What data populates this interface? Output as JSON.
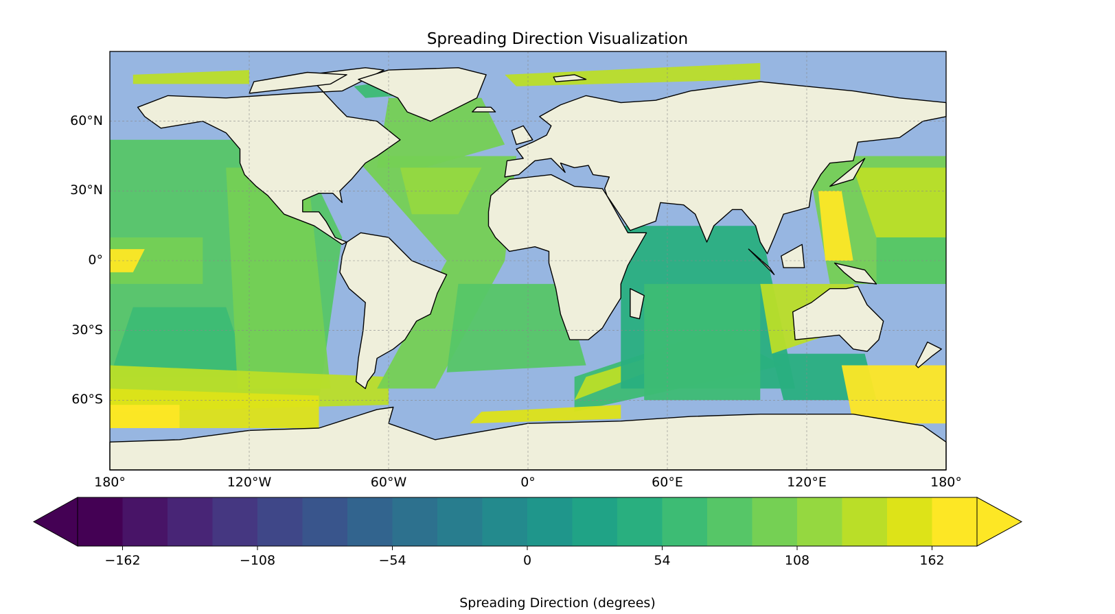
{
  "title": "Spreading Direction Visualization",
  "map": {
    "projection": "PlateCarree",
    "lon_range": [
      -180,
      180
    ],
    "lat_range": [
      -90,
      90
    ],
    "gridlines": true,
    "ocean_color": "#97b6e1",
    "land_color": "#efefdb",
    "coastline_color": "#000000",
    "lat_ticks": [
      {
        "lat": 60,
        "label": "60°N"
      },
      {
        "lat": 30,
        "label": "30°N"
      },
      {
        "lat": 0,
        "label": "0°"
      },
      {
        "lat": -30,
        "label": "30°S"
      },
      {
        "lat": -60,
        "label": "60°S"
      }
    ],
    "lon_ticks": [
      {
        "lon": -180,
        "label": "180°"
      },
      {
        "lon": -120,
        "label": "120°W"
      },
      {
        "lon": -60,
        "label": "60°W"
      },
      {
        "lon": 0,
        "label": "0°"
      },
      {
        "lon": 60,
        "label": "60°E"
      },
      {
        "lon": 120,
        "label": "120°E"
      },
      {
        "lon": 180,
        "label": "180°"
      }
    ]
  },
  "colorbar": {
    "label": "Spreading Direction (degrees)",
    "colormap": "viridis",
    "range": [
      -180,
      180
    ],
    "extend": "both",
    "levels": 20,
    "ticks": [
      {
        "value": -162,
        "label": "−162"
      },
      {
        "value": -108,
        "label": "−108"
      },
      {
        "value": -54,
        "label": "−54"
      },
      {
        "value": 0,
        "label": "0"
      },
      {
        "value": 54,
        "label": "54"
      },
      {
        "value": 108,
        "label": "108"
      },
      {
        "value": 162,
        "label": "162"
      }
    ],
    "colors": [
      "#440154",
      "#481467",
      "#482576",
      "#453781",
      "#3f4788",
      "#39558c",
      "#32648e",
      "#2d718e",
      "#287d8e",
      "#238a8d",
      "#1f968b",
      "#20a386",
      "#29af7f",
      "#3dbc74",
      "#56c667",
      "#75d054",
      "#95d840",
      "#bade28",
      "#dde318",
      "#fde725"
    ]
  }
}
